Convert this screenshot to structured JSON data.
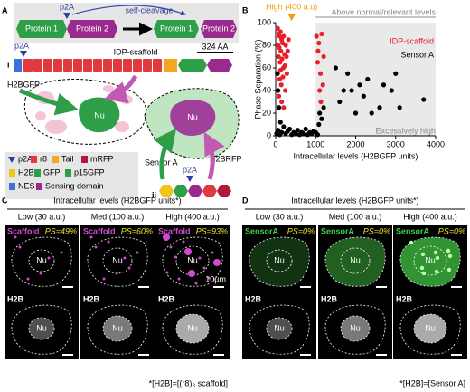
{
  "panel_labels": [
    "A",
    "B",
    "C",
    "D"
  ],
  "panel_a": {
    "top": {
      "p2a": "p2A",
      "protein1": "Protein 1",
      "protein2": "Protein 2",
      "cleavage": "self-cleavage"
    },
    "construct_i": {
      "numeral": "i",
      "p2a": "p2A",
      "name": "IDP-scaffold",
      "scale": "324 AA"
    },
    "cell_i": {
      "reporter": "H2BGFP",
      "nucleus": "Nu"
    },
    "cell_ii": {
      "sensor": "Sensor A",
      "reporter": "H2BRFP",
      "nucleus": "Nu",
      "numeral": "ii",
      "p2a": "p2A"
    },
    "legend": [
      {
        "label": "p2A",
        "color": "#2b3f9e",
        "shape": "triangle"
      },
      {
        "label": "r8",
        "color": "#e0393e"
      },
      {
        "label": "Tail",
        "color": "#f5a623"
      },
      {
        "label": "mRFP",
        "color": "#b5173a"
      },
      {
        "label": "H2B",
        "color": "#f0c419"
      },
      {
        "label": "GFP",
        "color": "#2e9e48"
      },
      {
        "label": "p15GFP",
        "color": "#2e9e48"
      },
      {
        "label": "NES",
        "color": "#3f6fd8"
      },
      {
        "label": "Sensing domain",
        "color": "#9b2a8e"
      }
    ]
  },
  "chart_data": {
    "type": "scatter",
    "xlabel": "Intracellular levels (H2BGFP units)",
    "ylabel": "Phase Separation (%)",
    "xlim": [
      0,
      4000
    ],
    "ylim": [
      0,
      100
    ],
    "xticks": [
      0,
      1000,
      2000,
      3000,
      4000
    ],
    "yticks": [
      0,
      20,
      40,
      60,
      80,
      100
    ],
    "annotations": [
      {
        "text": "High (400 a.u)",
        "x": 400,
        "color": "#f39c12"
      },
      {
        "text": "Above normal/relevant levels",
        "x": 1000,
        "color": "#8a8a8a"
      },
      {
        "text": "Excessively high",
        "color": "#8a8a8a"
      }
    ],
    "series": [
      {
        "name": "IDP-scaffold",
        "color": "#e8202a",
        "x": [
          50,
          80,
          100,
          120,
          150,
          60,
          90,
          130,
          170,
          200,
          220,
          250,
          70,
          110,
          160,
          190,
          230,
          270,
          300,
          50,
          100,
          140,
          180,
          240,
          80,
          150,
          200,
          280,
          320,
          120,
          1020,
          1080,
          1150,
          1050,
          1120,
          1180,
          1100,
          1130,
          1060,
          1200
        ],
        "values": [
          95,
          90,
          88,
          92,
          85,
          80,
          78,
          75,
          82,
          88,
          72,
          80,
          70,
          65,
          68,
          60,
          62,
          70,
          75,
          55,
          50,
          45,
          52,
          40,
          35,
          30,
          25,
          55,
          85,
          58,
          88,
          82,
          90,
          65,
          55,
          45,
          40,
          30,
          75,
          70
        ]
      },
      {
        "name": "Sensor A",
        "color": "#000000",
        "x": [
          20,
          60,
          100,
          150,
          200,
          250,
          300,
          350,
          400,
          450,
          500,
          550,
          600,
          650,
          700,
          750,
          800,
          850,
          900,
          950,
          1000,
          1050,
          120,
          80,
          60,
          40,
          1100,
          1150,
          1080,
          1200,
          1500,
          1600,
          1700,
          1800,
          1900,
          2000,
          2100,
          2200,
          2300,
          2400,
          2600,
          2700,
          2900,
          3000,
          3100,
          3700
        ],
        "values": [
          2,
          5,
          1,
          3,
          8,
          2,
          4,
          6,
          1,
          3,
          2,
          5,
          1,
          3,
          2,
          6,
          1,
          3,
          2,
          4,
          3,
          1,
          12,
          25,
          40,
          55,
          20,
          15,
          10,
          25,
          60,
          30,
          40,
          55,
          40,
          20,
          45,
          35,
          50,
          20,
          25,
          45,
          40,
          55,
          25,
          32
        ]
      }
    ]
  },
  "panel_c": {
    "header": "Intracellular levels (H2BGFP units*)",
    "columns": [
      "Low (30 a.u.)",
      "Med (100 a.u.)",
      "High (400 a.u.)"
    ],
    "rows": [
      {
        "label": "Scaffold",
        "ps": [
          "PS=49%",
          "PS=60%",
          "PS=93%"
        ]
      },
      {
        "label": "H2B"
      }
    ],
    "nucleus": "Nu",
    "scale_bar": "10µm",
    "footnote": "*[H2B]=[(r8)₈ scaffold]"
  },
  "panel_d": {
    "header": "Intracellular levels (H2BGFP units*)",
    "columns": [
      "Low (30 a.u.)",
      "Med (100 a.u.)",
      "High (400 a.u.)"
    ],
    "rows": [
      {
        "label": "SensorA",
        "ps": [
          "PS=0%",
          "PS=0%",
          "PS=0%"
        ]
      },
      {
        "label": "H2B"
      }
    ],
    "nucleus": "Nu",
    "footnote": "*[H2B]=[Sensor A]"
  }
}
